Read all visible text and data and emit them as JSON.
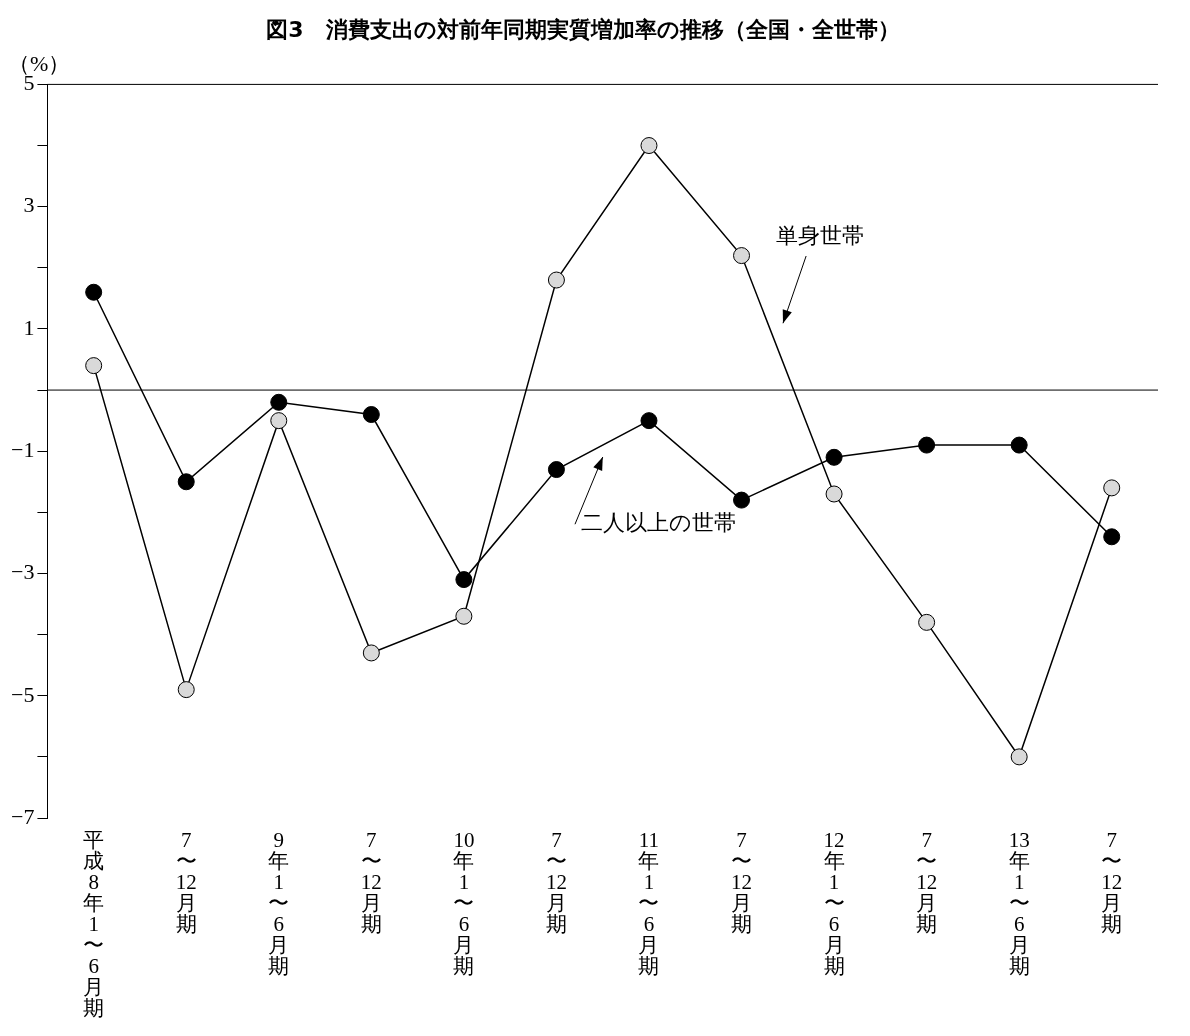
{
  "chart_data": {
    "type": "line",
    "title": "図3　消費支出の対前年同期実質増加率の推移（全国・全世帯）",
    "ylabel": "（%）",
    "categories": [
      "平成8年1〜6月期",
      "7〜12月期",
      "9年1〜6月期",
      "7〜12月期",
      "10年1〜6月期",
      "7〜12月期",
      "11年1〜6月期",
      "7〜12月期",
      "12年1〜6月期",
      "7〜12月期",
      "13年1〜6月期",
      "7〜12月期"
    ],
    "series": [
      {
        "name": "単身世帯",
        "color": "#d9d9d9",
        "values": [
          0.4,
          -4.9,
          -0.5,
          -4.3,
          -3.7,
          1.8,
          4.0,
          2.2,
          -1.7,
          -3.8,
          -6.0,
          -1.6
        ]
      },
      {
        "name": "二人以上の世帯",
        "color": "#000000",
        "values": [
          1.6,
          -1.5,
          -0.2,
          -0.4,
          -3.1,
          -1.3,
          -0.5,
          -1.8,
          -1.1,
          -0.9,
          -0.9,
          -2.4
        ]
      }
    ],
    "ylim": [
      -7,
      5
    ],
    "yticks": [
      -7,
      {
        "value": -6,
        "label": null
      },
      -5,
      {
        "value": -4,
        "label": null
      },
      -3,
      {
        "value": -2,
        "label": null
      },
      -1,
      {
        "value": 0,
        "label": null
      },
      1,
      {
        "value": 2,
        "label": null
      },
      3,
      {
        "value": 4,
        "label": null
      },
      5
    ],
    "ref_lines": [
      {
        "axis": "y",
        "value": 0
      }
    ],
    "marker": "circle",
    "grid": false,
    "legend": false
  }
}
